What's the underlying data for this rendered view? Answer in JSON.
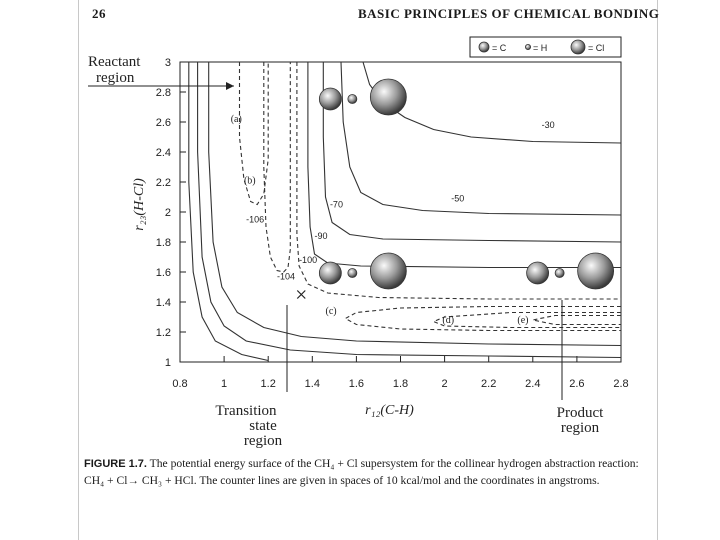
{
  "page": {
    "number": "26",
    "running_header": "BASIC PRINCIPLES OF CHEMICAL BONDING"
  },
  "caption": {
    "label": "FIGURE 1.7.",
    "text": "The potential energy surface of the CH₄ + Cl supersystem for the collinear hydrogen abstraction reaction: CH₄ + Cl→ CH₃ + HCl. The counter lines are given in spaces of 10 kcal/mol and the coordinates in angstroms."
  },
  "legend": {
    "items": [
      {
        "symbol": "C",
        "label": "= C"
      },
      {
        "symbol": "H",
        "label": "= H"
      },
      {
        "symbol": "Cl",
        "label": "= Cl"
      }
    ]
  },
  "region_labels": {
    "reactant": [
      "Reactant",
      "region"
    ],
    "transition": [
      "Transition",
      "state",
      "region"
    ],
    "product": [
      "Product",
      "region"
    ]
  },
  "chart_data": {
    "type": "contour",
    "xlabel": "r₁₂(C-H)",
    "ylabel": "r₂₃(H-Cl)",
    "xlim": [
      0.8,
      2.8
    ],
    "ylim": [
      1.0,
      3.0
    ],
    "xticks": [
      "0.8",
      "1",
      "1.2",
      "1.4",
      "1.6",
      "1.8",
      "2",
      "2.2",
      "2.4",
      "2.6",
      "2.8"
    ],
    "yticks": [
      "1",
      "1.2",
      "1.4",
      "1.6",
      "1.8",
      "2",
      "2.2",
      "2.4",
      "2.6",
      "2.8",
      "3"
    ],
    "transition_state": {
      "x": 1.35,
      "y": 1.45
    },
    "contours": [
      {
        "level": "-30",
        "style": "solid",
        "points": [
          [
            1.63,
            3.0
          ],
          [
            1.66,
            2.85
          ],
          [
            1.72,
            2.73
          ],
          [
            1.82,
            2.63
          ],
          [
            1.95,
            2.55
          ],
          [
            2.12,
            2.5
          ],
          [
            2.4,
            2.47
          ],
          [
            2.8,
            2.46
          ]
        ]
      },
      {
        "level": "-50",
        "style": "solid",
        "points": [
          [
            1.53,
            3.0
          ],
          [
            1.54,
            2.6
          ],
          [
            1.57,
            2.3
          ],
          [
            1.62,
            2.13
          ],
          [
            1.72,
            2.05
          ],
          [
            1.9,
            2.01
          ],
          [
            2.2,
            1.99
          ],
          [
            2.8,
            1.98
          ]
        ]
      },
      {
        "level": "-70",
        "style": "solid",
        "points": [
          [
            1.45,
            3.0
          ],
          [
            1.45,
            2.5
          ],
          [
            1.46,
            2.1
          ],
          [
            1.49,
            1.93
          ],
          [
            1.57,
            1.85
          ],
          [
            1.72,
            1.82
          ],
          [
            2.2,
            1.81
          ],
          [
            2.8,
            1.8
          ]
        ]
      },
      {
        "level": "-90",
        "style": "solid",
        "points": [
          [
            1.38,
            3.0
          ],
          [
            1.38,
            2.3
          ],
          [
            1.39,
            1.9
          ],
          [
            1.41,
            1.72
          ],
          [
            1.47,
            1.66
          ],
          [
            1.62,
            1.64
          ],
          [
            2.2,
            1.63
          ],
          [
            2.8,
            1.63
          ]
        ]
      },
      {
        "level": "-100",
        "style": "dashed",
        "points": [
          [
            1.33,
            3.0
          ],
          [
            1.33,
            2.3
          ],
          [
            1.33,
            1.85
          ],
          [
            1.34,
            1.64
          ],
          [
            1.38,
            1.52
          ],
          [
            1.47,
            1.46
          ],
          [
            1.7,
            1.43
          ],
          [
            2.2,
            1.42
          ],
          [
            2.8,
            1.42
          ]
        ]
      },
      {
        "level": "-104",
        "style": "dashed",
        "points": [
          [
            1.18,
            3.0
          ],
          [
            1.18,
            2.3
          ],
          [
            1.19,
            1.9
          ],
          [
            1.21,
            1.7
          ],
          [
            1.24,
            1.61
          ],
          [
            1.27,
            1.6
          ],
          [
            1.29,
            1.63
          ],
          [
            1.3,
            1.75
          ],
          [
            1.3,
            2.4
          ],
          [
            1.3,
            3.0
          ]
        ]
      },
      {
        "level": "-106",
        "style": "dashed",
        "points": [
          [
            1.07,
            3.0
          ],
          [
            1.07,
            2.5
          ],
          [
            1.09,
            2.22
          ],
          [
            1.12,
            2.07
          ],
          [
            1.15,
            2.05
          ],
          [
            1.18,
            2.12
          ],
          [
            1.2,
            2.35
          ],
          [
            1.2,
            3.0
          ]
        ]
      },
      {
        "level": "",
        "style": "dashed",
        "points": [
          [
            2.8,
            1.37
          ],
          [
            2.2,
            1.37
          ],
          [
            1.8,
            1.36
          ],
          [
            1.6,
            1.33
          ],
          [
            1.55,
            1.29
          ],
          [
            1.6,
            1.25
          ],
          [
            1.8,
            1.22
          ],
          [
            2.2,
            1.21
          ],
          [
            2.8,
            1.21
          ]
        ]
      },
      {
        "level": "",
        "style": "dashed",
        "points": [
          [
            2.8,
            1.33
          ],
          [
            2.3,
            1.33
          ],
          [
            2.0,
            1.3
          ],
          [
            1.95,
            1.27
          ],
          [
            2.0,
            1.24
          ],
          [
            2.3,
            1.23
          ],
          [
            2.8,
            1.23
          ]
        ]
      },
      {
        "level": "",
        "style": "dashed",
        "points": [
          [
            2.8,
            1.31
          ],
          [
            2.5,
            1.31
          ],
          [
            2.4,
            1.28
          ],
          [
            2.5,
            1.25
          ],
          [
            2.8,
            1.25
          ]
        ]
      },
      {
        "level": "",
        "style": "solid",
        "points": [
          [
            0.93,
            3.0
          ],
          [
            0.93,
            2.4
          ],
          [
            0.95,
            1.8
          ],
          [
            0.99,
            1.5
          ],
          [
            1.06,
            1.33
          ],
          [
            1.18,
            1.23
          ],
          [
            1.35,
            1.17
          ],
          [
            1.6,
            1.14
          ],
          [
            2.2,
            1.12
          ],
          [
            2.8,
            1.11
          ]
        ]
      },
      {
        "level": "",
        "style": "solid",
        "points": [
          [
            0.88,
            3.0
          ],
          [
            0.88,
            2.4
          ],
          [
            0.9,
            1.7
          ],
          [
            0.94,
            1.4
          ],
          [
            1.0,
            1.24
          ],
          [
            1.1,
            1.14
          ],
          [
            1.3,
            1.08
          ],
          [
            1.6,
            1.05
          ],
          [
            2.2,
            1.04
          ],
          [
            2.8,
            1.03
          ]
        ]
      },
      {
        "level": "",
        "style": "solid",
        "points": [
          [
            0.84,
            3.0
          ],
          [
            0.84,
            2.2
          ],
          [
            0.86,
            1.6
          ],
          [
            0.9,
            1.3
          ],
          [
            0.96,
            1.14
          ],
          [
            1.08,
            1.05
          ],
          [
            1.2,
            1.01
          ]
        ]
      }
    ],
    "contour_labels": [
      {
        "text": "-30",
        "x": 2.44,
        "y": 2.56
      },
      {
        "text": "-50",
        "x": 2.03,
        "y": 2.07
      },
      {
        "text": "-70",
        "x": 1.48,
        "y": 2.03
      },
      {
        "text": "-90",
        "x": 1.41,
        "y": 1.82
      },
      {
        "text": "-100",
        "x": 1.34,
        "y": 1.66
      },
      {
        "text": "-104",
        "x": 1.24,
        "y": 1.55
      },
      {
        "text": "-106",
        "x": 1.1,
        "y": 1.93
      }
    ],
    "point_labels": [
      {
        "text": "(a)",
        "x": 1.03,
        "y": 2.6
      },
      {
        "text": "(b)",
        "x": 1.09,
        "y": 2.19
      },
      {
        "text": "(c)",
        "x": 1.46,
        "y": 1.32
      },
      {
        "text": "(d)",
        "x": 1.99,
        "y": 1.26
      },
      {
        "text": "(e)",
        "x": 2.33,
        "y": 1.26
      }
    ],
    "molecules": [
      {
        "x": 1.5,
        "y": 2.78,
        "atoms": [
          "C",
          "H",
          "Cl"
        ]
      },
      {
        "x": 1.5,
        "y": 1.62,
        "atoms": [
          "C",
          "H",
          "Cl"
        ]
      },
      {
        "x": 2.44,
        "y": 1.62,
        "atoms": [
          "C",
          "H",
          "Cl"
        ]
      }
    ]
  }
}
